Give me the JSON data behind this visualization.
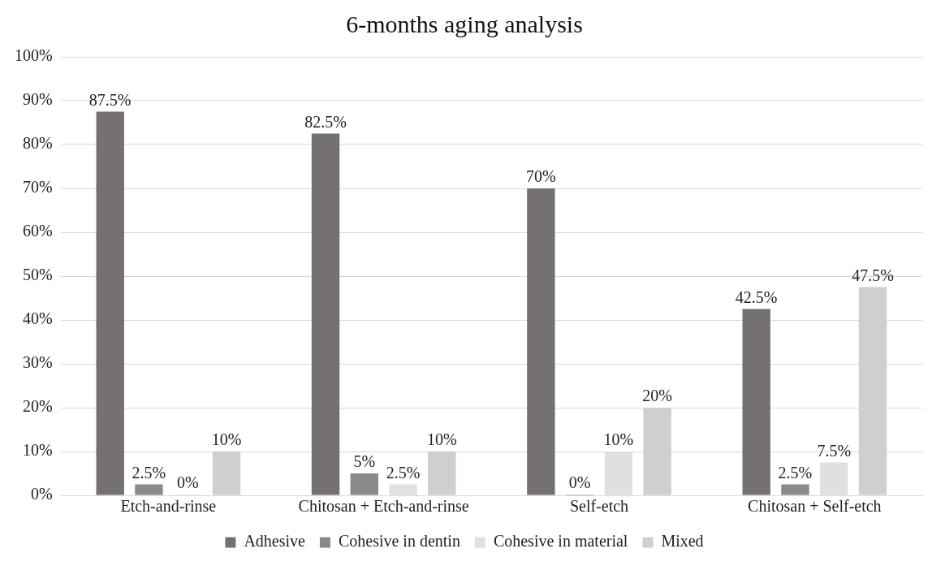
{
  "chart_data": {
    "type": "bar",
    "title": "6-months aging analysis",
    "categories": [
      "Etch-and-rinse",
      "Chitosan + Etch-and-rinse",
      "Self-etch",
      "Chitosan + Self-etch"
    ],
    "series": [
      {
        "name": "Adhesive",
        "color": "#767171",
        "values": [
          87.5,
          82.5,
          70,
          42.5
        ],
        "value_labels": [
          "87.5%",
          "82.5%",
          "70%",
          "42.5%"
        ]
      },
      {
        "name": "Cohesive in dentin",
        "color": "#8a8a8a",
        "values": [
          2.5,
          5,
          0,
          2.5
        ],
        "value_labels": [
          "2.5%",
          "5%",
          "0%",
          "2.5%"
        ]
      },
      {
        "name": "Cohesive in material",
        "color": "#e0e0e0",
        "values": [
          0,
          2.5,
          10,
          7.5
        ],
        "value_labels": [
          "0%",
          "2.5%",
          "10%",
          "7.5%"
        ]
      },
      {
        "name": "Mixed",
        "color": "#cfcfcf",
        "values": [
          10,
          10,
          20,
          47.5
        ],
        "value_labels": [
          "10%",
          "10%",
          "20%",
          "47.5%"
        ]
      }
    ],
    "ylim": [
      0,
      100
    ],
    "yticks": [
      {
        "value": 0,
        "label": "0%"
      },
      {
        "value": 10,
        "label": "10%"
      },
      {
        "value": 20,
        "label": "20%"
      },
      {
        "value": 30,
        "label": "30%"
      },
      {
        "value": 40,
        "label": "40%"
      },
      {
        "value": 50,
        "label": "50%"
      },
      {
        "value": 60,
        "label": "60%"
      },
      {
        "value": 70,
        "label": "70%"
      },
      {
        "value": 80,
        "label": "80%"
      },
      {
        "value": 90,
        "label": "90%"
      },
      {
        "value": 100,
        "label": "100%"
      }
    ],
    "grid": "y",
    "legend": "bottom"
  }
}
